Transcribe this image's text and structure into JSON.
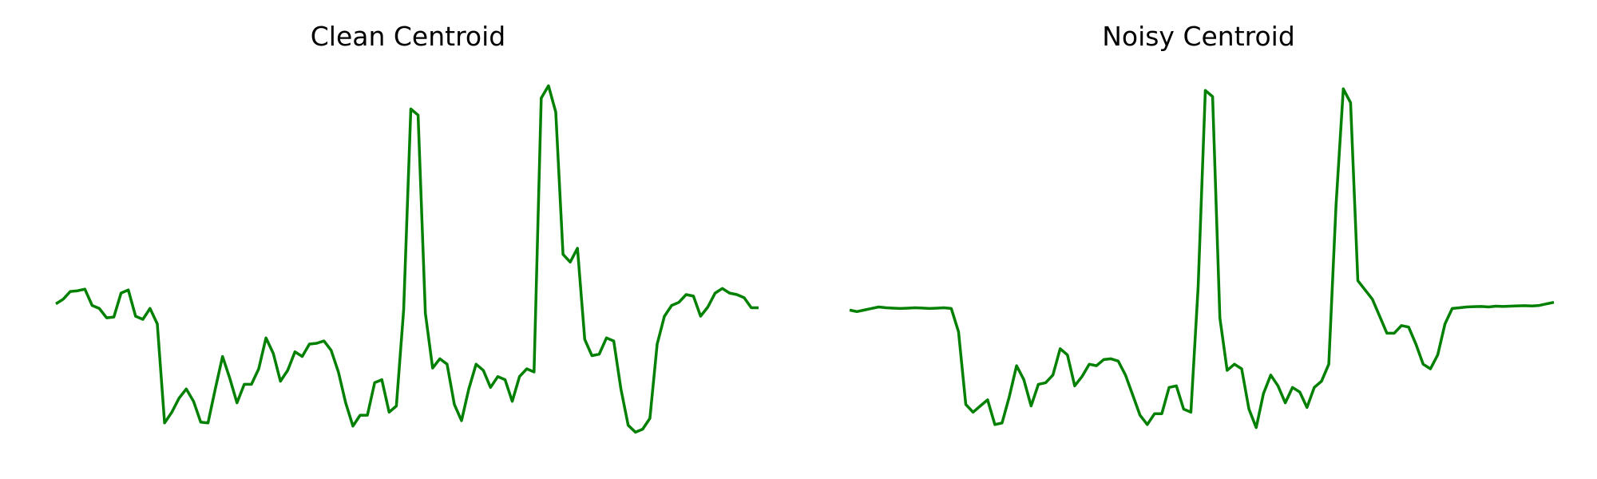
{
  "chart_data": [
    {
      "type": "line",
      "title": "Clean Centroid",
      "xlabel": "",
      "ylabel": "",
      "grid": false,
      "axes_visible": false,
      "color": "#008000",
      "x": [
        0,
        1,
        2,
        3,
        4,
        5,
        6,
        7,
        8,
        9,
        10,
        11,
        12,
        13,
        14,
        15,
        16,
        17,
        18,
        19,
        20,
        21,
        22,
        23,
        24,
        25,
        26,
        27,
        28,
        29,
        30,
        31,
        32,
        33,
        34,
        35,
        36,
        37,
        38,
        39,
        40,
        41,
        42,
        43,
        44,
        45,
        46,
        47,
        48,
        49,
        50,
        51,
        52,
        53,
        54,
        55,
        56,
        57,
        58,
        59,
        60,
        61,
        62,
        63,
        64,
        65,
        66,
        67,
        68,
        69,
        70,
        71,
        72,
        73,
        74,
        75,
        76,
        77,
        78,
        79,
        80,
        81,
        82,
        83,
        84,
        85,
        86,
        87,
        88,
        89,
        90,
        91,
        92,
        93,
        94,
        95,
        96,
        97
      ],
      "y": [
        0.3,
        0.33,
        0.38,
        0.385,
        0.395,
        0.29,
        0.27,
        0.21,
        0.215,
        0.37,
        0.39,
        0.22,
        0.2,
        0.27,
        0.17,
        -0.47,
        -0.4,
        -0.31,
        -0.25,
        -0.33,
        -0.465,
        -0.47,
        -0.25,
        -0.04,
        -0.18,
        -0.34,
        -0.22,
        -0.22,
        -0.12,
        0.08,
        -0.02,
        -0.2,
        -0.13,
        -0.01,
        -0.04,
        0.04,
        0.045,
        0.06,
        0.0,
        -0.14,
        -0.34,
        -0.49,
        -0.42,
        -0.42,
        -0.21,
        -0.19,
        -0.4,
        -0.36,
        0.26,
        1.56,
        1.52,
        0.24,
        -0.115,
        -0.055,
        -0.09,
        -0.35,
        -0.455,
        -0.25,
        -0.09,
        -0.13,
        -0.24,
        -0.17,
        -0.19,
        -0.33,
        -0.17,
        -0.12,
        -0.14,
        1.63,
        1.71,
        1.54,
        0.62,
        0.57,
        0.66,
        0.07,
        -0.035,
        -0.025,
        0.08,
        0.06,
        -0.25,
        -0.485,
        -0.53,
        -0.51,
        -0.44,
        0.04,
        0.22,
        0.29,
        0.31,
        0.36,
        0.35,
        0.22,
        0.28,
        0.37,
        0.4,
        0.37,
        0.36,
        0.34,
        0.275,
        0.275
      ]
    },
    {
      "type": "line",
      "title": "Noisy Centroid",
      "xlabel": "",
      "ylabel": "",
      "grid": false,
      "axes_visible": false,
      "color": "#008000",
      "x": [
        0,
        1,
        2,
        3,
        4,
        5,
        6,
        7,
        8,
        9,
        10,
        11,
        12,
        13,
        14,
        15,
        16,
        17,
        18,
        19,
        20,
        21,
        22,
        23,
        24,
        25,
        26,
        27,
        28,
        29,
        30,
        31,
        32,
        33,
        34,
        35,
        36,
        37,
        38,
        39,
        40,
        41,
        42,
        43,
        44,
        45,
        46,
        47,
        48,
        49,
        50,
        51,
        52,
        53,
        54,
        55,
        56,
        57,
        58,
        59,
        60,
        61,
        62,
        63,
        64,
        65,
        66,
        67,
        68,
        69,
        70,
        71,
        72,
        73,
        74,
        75,
        76,
        77,
        78,
        79,
        80,
        81,
        82,
        83,
        84,
        85,
        86,
        87,
        88,
        89,
        90,
        91,
        92,
        93,
        94,
        95,
        96,
        97
      ],
      "y": [
        0.26,
        0.25,
        0.26,
        0.27,
        0.28,
        0.275,
        0.272,
        0.27,
        0.272,
        0.275,
        0.273,
        0.27,
        0.272,
        0.275,
        0.27,
        0.12,
        -0.35,
        -0.4,
        -0.36,
        -0.32,
        -0.48,
        -0.47,
        -0.3,
        -0.1,
        -0.19,
        -0.36,
        -0.22,
        -0.21,
        -0.16,
        0.01,
        -0.03,
        -0.23,
        -0.17,
        -0.09,
        -0.1,
        -0.06,
        -0.055,
        -0.07,
        -0.16,
        -0.29,
        -0.42,
        -0.48,
        -0.41,
        -0.41,
        -0.24,
        -0.23,
        -0.38,
        -0.4,
        0.41,
        1.68,
        1.64,
        0.21,
        -0.13,
        -0.09,
        -0.12,
        -0.38,
        -0.5,
        -0.28,
        -0.16,
        -0.23,
        -0.34,
        -0.24,
        -0.27,
        -0.37,
        -0.24,
        -0.2,
        -0.09,
        0.94,
        1.69,
        1.6,
        0.45,
        0.39,
        0.33,
        0.22,
        0.11,
        0.11,
        0.16,
        0.15,
        0.04,
        -0.09,
        -0.12,
        -0.03,
        0.17,
        0.27,
        0.275,
        0.28,
        0.282,
        0.283,
        0.28,
        0.285,
        0.283,
        0.285,
        0.287,
        0.288,
        0.286,
        0.29,
        0.3,
        0.31
      ]
    }
  ]
}
